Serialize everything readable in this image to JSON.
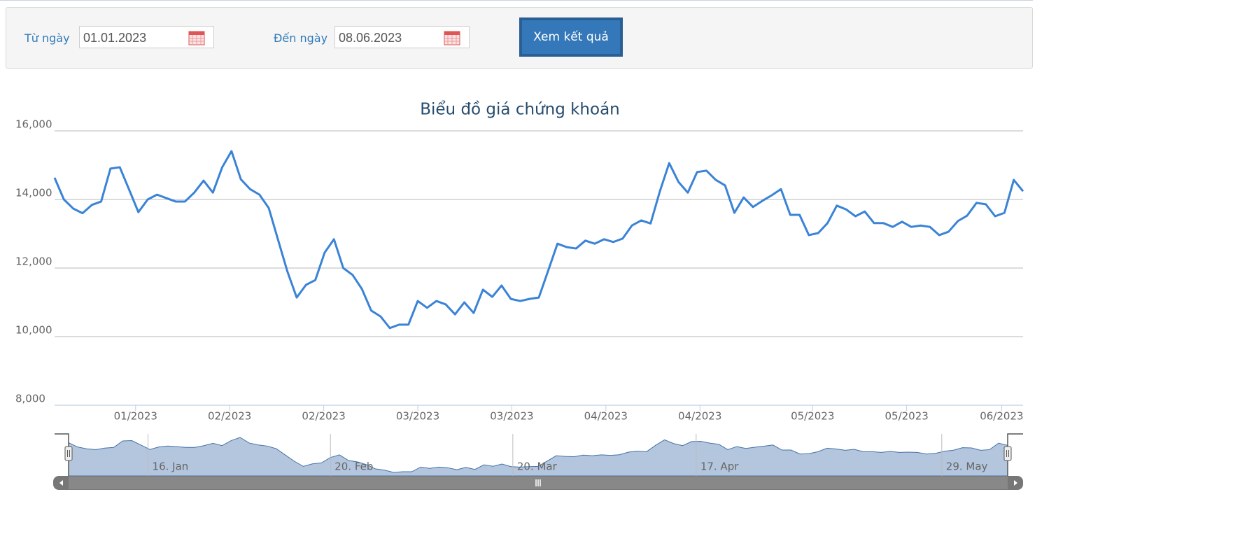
{
  "form": {
    "from_label": "Từ ngày",
    "from_value": "01.01.2023",
    "to_label": "Đến ngày",
    "to_value": "08.06.2023",
    "button": "Xem kết quả"
  },
  "chart_data": {
    "type": "line",
    "title": "Biểu đồ giá chứng khoán",
    "series": [
      {
        "color": "#3a83d7",
        "values": [
          14633,
          14000,
          13735,
          13600,
          13840,
          13940,
          14900,
          14940,
          14290,
          13630,
          14000,
          14140,
          14040,
          13940,
          13940,
          14200,
          14550,
          14200,
          14940,
          15410,
          14590,
          14300,
          14140,
          13750,
          12820,
          11900,
          11140,
          11510,
          11650,
          12450,
          12840,
          12000,
          11800,
          11390,
          10760,
          10590,
          10250,
          10350,
          10350,
          11040,
          10840,
          11040,
          10940,
          10650,
          11000,
          10690,
          11370,
          11160,
          11490,
          11100,
          11040,
          11100,
          11140,
          11920,
          12710,
          12610,
          12570,
          12800,
          12710,
          12840,
          12760,
          12860,
          13240,
          13390,
          13300,
          14240,
          15060,
          14510,
          14200,
          14800,
          14840,
          14570,
          14410,
          13610,
          14060,
          13780,
          13960,
          14120,
          14300,
          13550,
          13550,
          12960,
          13020,
          13310,
          13820,
          13710,
          13510,
          13650,
          13310,
          13310,
          13200,
          13350,
          13200,
          13240,
          13200,
          12960,
          13060,
          13370,
          13530,
          13900,
          13860,
          13510,
          13610,
          14570,
          14240
        ]
      }
    ],
    "xlim": [
      0,
      104
    ],
    "xticks": [
      {
        "value": 8.7,
        "label": "01/2023"
      },
      {
        "value": 18.8,
        "label": "02/2023"
      },
      {
        "value": 28.9,
        "label": "02/2023"
      },
      {
        "value": 39.0,
        "label": "03/2023"
      },
      {
        "value": 49.1,
        "label": "03/2023"
      },
      {
        "value": 59.2,
        "label": "04/2023"
      },
      {
        "value": 69.3,
        "label": "04/2023"
      },
      {
        "value": 81.4,
        "label": "05/2023"
      },
      {
        "value": 91.5,
        "label": "05/2023"
      },
      {
        "value": 101.7,
        "label": "06/2023"
      }
    ],
    "ylim": [
      8000,
      16000
    ],
    "yticks": [
      {
        "value": 8000,
        "label": "8,000"
      },
      {
        "value": 10000,
        "label": "10,000"
      },
      {
        "value": 12000,
        "label": "12,000"
      },
      {
        "value": 14000,
        "label": "14,000"
      },
      {
        "value": 16000,
        "label": "16,000"
      }
    ],
    "grid": true,
    "navigator_xticks": [
      {
        "value": 8.8,
        "label": "16. Jan"
      },
      {
        "value": 29.0,
        "label": "20. Feb"
      },
      {
        "value": 49.2,
        "label": "20. Mar"
      },
      {
        "value": 69.5,
        "label": "17. Apr"
      },
      {
        "value": 96.7,
        "label": "29. May"
      }
    ]
  }
}
